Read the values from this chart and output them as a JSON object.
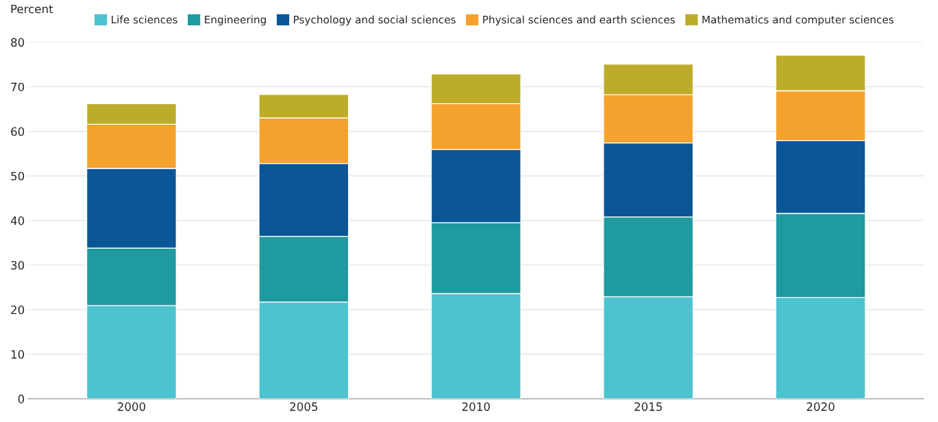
{
  "chart_data": {
    "type": "bar",
    "stacked": true,
    "ylabel": "Percent",
    "categories": [
      "2000",
      "2005",
      "2010",
      "2015",
      "2020"
    ],
    "series": [
      {
        "name": "Life sciences",
        "color": "#4cc3cf",
        "values": [
          20.9,
          21.7,
          23.6,
          22.9,
          22.7
        ]
      },
      {
        "name": "Engineering",
        "color": "#1e9aa0",
        "values": [
          12.9,
          14.7,
          15.9,
          17.9,
          18.9
        ]
      },
      {
        "name": "Psychology and social sciences",
        "color": "#0b5697",
        "values": [
          17.9,
          16.4,
          16.4,
          16.6,
          16.3
        ]
      },
      {
        "name": "Physical sciences and earth sciences",
        "color": "#f4a22d",
        "values": [
          9.9,
          10.2,
          10.3,
          10.8,
          11.2
        ]
      },
      {
        "name": "Mathematics and computer sciences",
        "color": "#bcac2a",
        "values": [
          4.6,
          5.3,
          6.7,
          6.9,
          8.0
        ]
      }
    ],
    "ylim": [
      0,
      80
    ],
    "yticks": [
      0,
      10,
      20,
      30,
      40,
      50,
      60,
      70,
      80
    ],
    "grid": "y",
    "legend": "top"
  }
}
